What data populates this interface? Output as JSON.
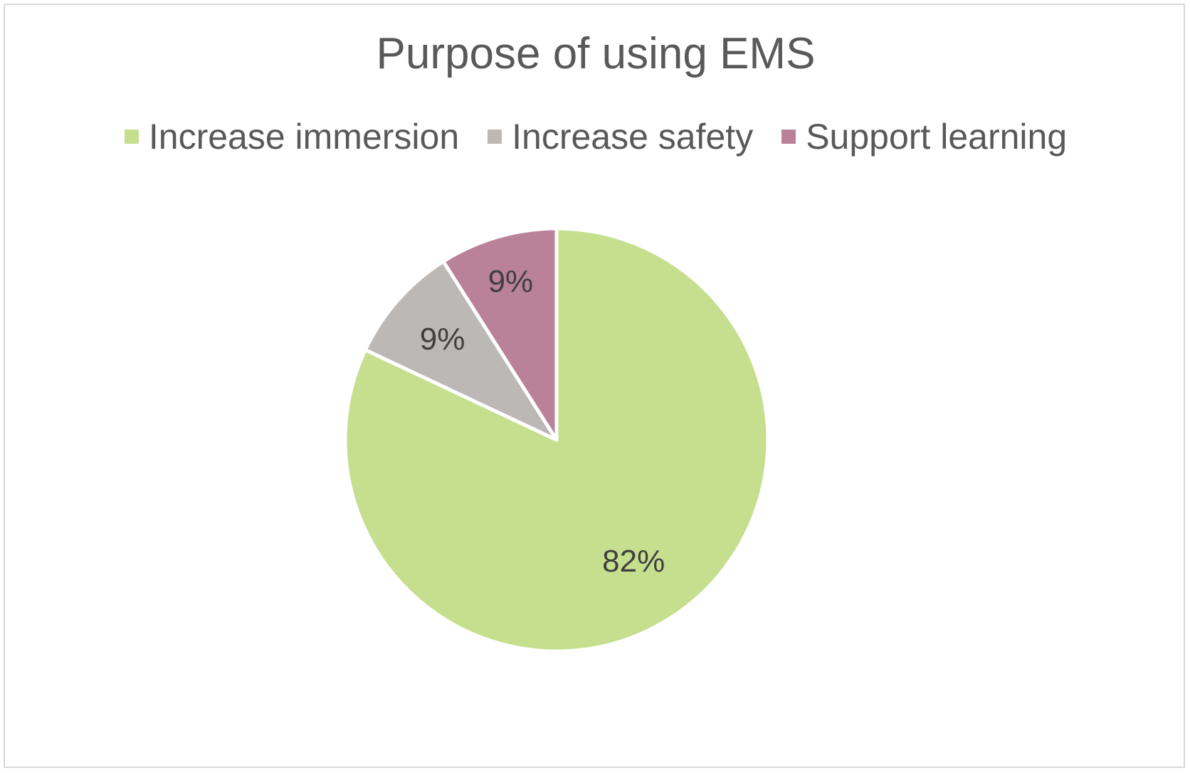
{
  "chart_data": {
    "type": "pie",
    "title": "Purpose of using EMS",
    "legend_position": "top",
    "categories": [
      "Increase immersion",
      "Increase safety",
      "Support learning"
    ],
    "values": [
      82,
      9,
      9
    ],
    "data_labels": [
      "82%",
      "9%",
      "9%"
    ],
    "colors": [
      "#c5df8e",
      "#bcb8b6",
      "#b98299"
    ],
    "start_angle_deg": 0,
    "direction": "clockwise"
  }
}
